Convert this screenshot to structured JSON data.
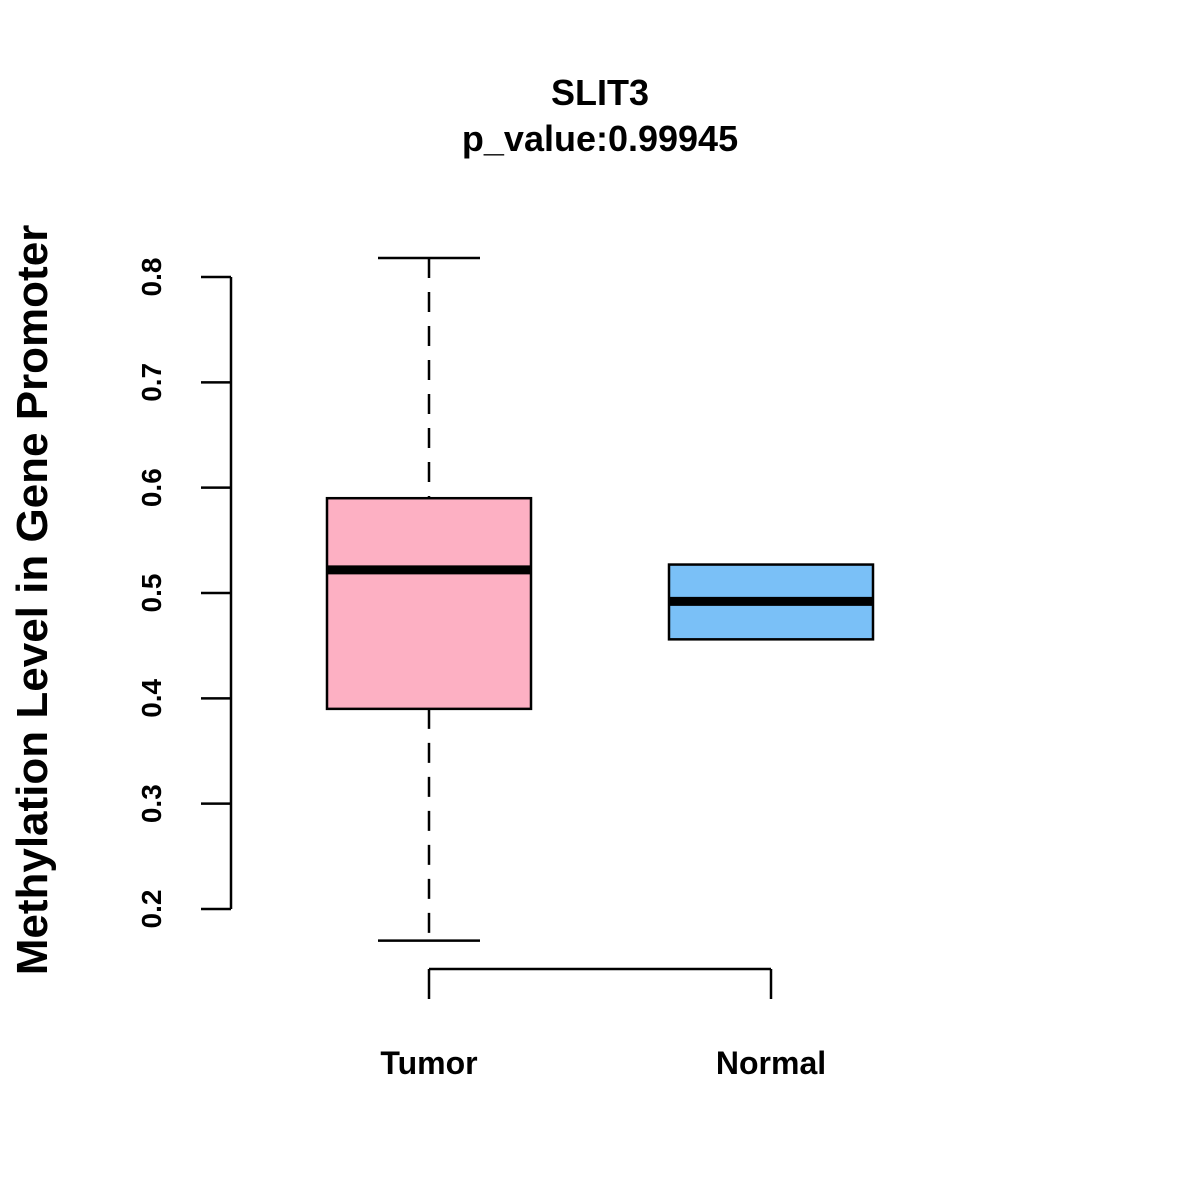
{
  "chart_data": {
    "type": "boxplot",
    "title": "SLIT3",
    "subtitle": "p_value:0.99945",
    "xlabel": "",
    "ylabel": "Methylation Level in Gene Promoter",
    "ylim": [
      0.2,
      0.8
    ],
    "yticks": [
      "0.2",
      "0.3",
      "0.4",
      "0.5",
      "0.6",
      "0.7",
      "0.8"
    ],
    "grid": false,
    "categories": [
      "Tumor",
      "Normal"
    ],
    "boxes": [
      {
        "name": "Tumor",
        "whisker_low": 0.17,
        "q1": 0.39,
        "median": 0.522,
        "q3": 0.59,
        "whisker_high": 0.818,
        "fill": "#FDB0C3"
      },
      {
        "name": "Normal",
        "whisker_low": 0.456,
        "q1": 0.456,
        "median": 0.492,
        "q3": 0.527,
        "whisker_high": 0.527,
        "fill": "#7AC0F7"
      }
    ]
  }
}
